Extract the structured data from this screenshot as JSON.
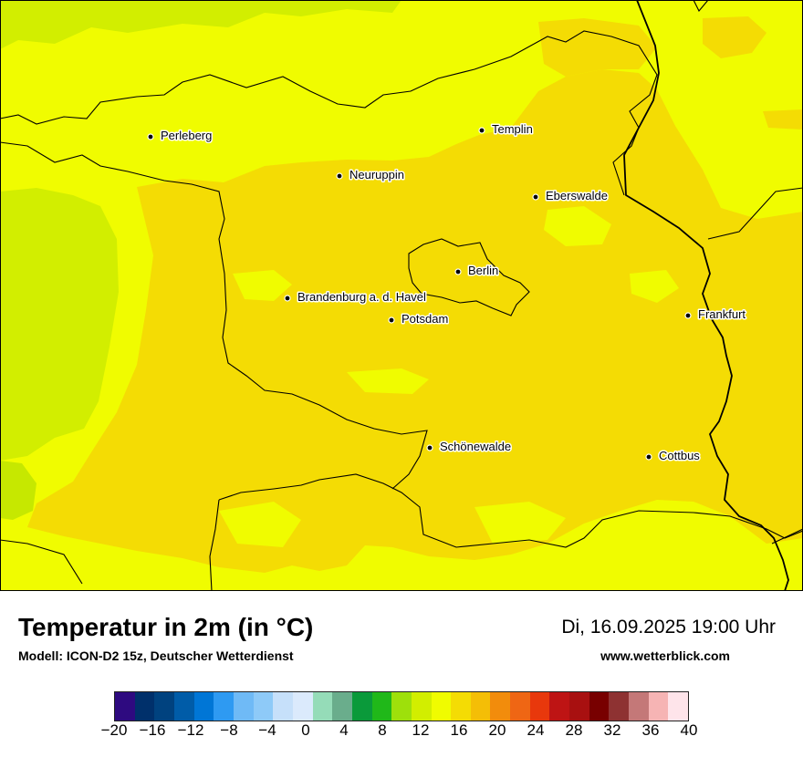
{
  "map": {
    "cities": [
      {
        "name": "Perleberg"
      },
      {
        "name": "Templin"
      },
      {
        "name": "Neuruppin"
      },
      {
        "name": "Eberswalde"
      },
      {
        "name": "Berlin"
      },
      {
        "name": "Brandenburg a. d. Havel"
      },
      {
        "name": "Potsdam"
      },
      {
        "name": "Frankfurt"
      },
      {
        "name": "Schönewalde"
      },
      {
        "name": "Cottbus"
      }
    ]
  },
  "footer": {
    "title": "Temperatur in 2m (in °C)",
    "subtitle": "Modell: ICON-D2 15z, Deutscher Wetterdienst",
    "datetime": "Di, 16.09.2025 19:00 Uhr",
    "website": "www.wetterblick.com"
  },
  "legend": {
    "colors": [
      "#2e0a80",
      "#00306b",
      "#00427f",
      "#005ca8",
      "#0076d6",
      "#2e9af2",
      "#6fbaf6",
      "#8ecaf8",
      "#c6e0fa",
      "#dbeafc",
      "#95dcb8",
      "#6aad8c",
      "#0a9a3a",
      "#20b819",
      "#9ee00b",
      "#d2ee00",
      "#f0fc00",
      "#f4dc04",
      "#f4be06",
      "#f28c0c",
      "#ef6614",
      "#e8380c",
      "#be1414",
      "#a81010",
      "#780000",
      "#8e3232",
      "#c47878",
      "#f6b4b4",
      "#fee4ea"
    ],
    "tick_labels": [
      "−20",
      "−16",
      "−12",
      "−8",
      "−4",
      "0",
      "4",
      "8",
      "12",
      "16",
      "20",
      "24",
      "28",
      "32",
      "36",
      "40"
    ]
  }
}
